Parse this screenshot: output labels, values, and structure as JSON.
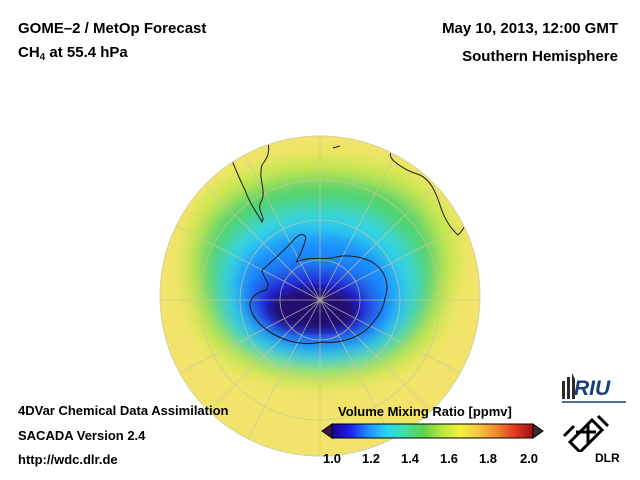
{
  "header": {
    "product": "GOME–2 / MetOp Forecast",
    "species_main": "CH",
    "species_sub": "4",
    "species_rest": " at 55.4 hPa",
    "datetime": "May 10, 2013, 12:00 GMT",
    "region": "Southern Hemisphere"
  },
  "footer": {
    "line1": "4DVar Chemical Data Assimilation",
    "line2": "SACADA Version 2.4",
    "line3": "http://wdc.dlr.de"
  },
  "colorbar": {
    "title": "Volume Mixing Ratio [ppmv]",
    "ticks": [
      "1.0",
      "1.2",
      "1.4",
      "1.6",
      "1.8",
      "2.0"
    ],
    "min": 1.0,
    "max": 2.0,
    "colors": [
      "#1a0096",
      "#2020e8",
      "#1e90ff",
      "#29d6f0",
      "#40e0a0",
      "#5cd24a",
      "#b8e63a",
      "#f2f23c",
      "#f5c842",
      "#f08a2e",
      "#e23a22",
      "#a00c10"
    ]
  },
  "logos": {
    "riu": "RIU",
    "dlr": "DLR"
  },
  "map": {
    "projection": "orthographic, south pole centered",
    "field_colors": {
      "background": "#f2e46a",
      "ring": "#b8e23f",
      "green": "#4fd36d",
      "cyan": "#31d6e6",
      "blue": "#1e8cff",
      "deep": "#1717c8",
      "core": "#220a6a"
    }
  }
}
